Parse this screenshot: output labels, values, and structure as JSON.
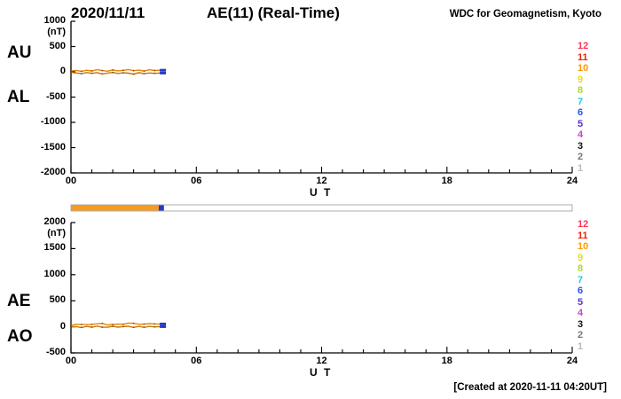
{
  "header": {
    "date": "2020/11/11",
    "title": "AE(11) (Real-Time)",
    "source": "WDC for Geomagnetism, Kyoto"
  },
  "footer": {
    "created_note": "[Created at 2020-11-11 04:20UT]"
  },
  "legend": {
    "numbers": [
      12,
      11,
      10,
      9,
      8,
      7,
      6,
      5,
      4,
      3,
      2,
      1
    ],
    "colors": [
      "#ff3355",
      "#ee2200",
      "#ff9900",
      "#eedd00",
      "#aad633",
      "#22ccee",
      "#2255ee",
      "#5533cc",
      "#cc44cc",
      "#111111",
      "#777777",
      "#bbbbbb"
    ]
  },
  "availability_bar": {
    "range": [
      0,
      24
    ],
    "filled_from": 0,
    "filled_to": 4.2,
    "fill_color": "#f59b22",
    "tip_from": 4.2,
    "tip_to": 4.45,
    "tip_color": "#2838c8",
    "track_color": "#ffffff",
    "border_color": "#999999"
  },
  "chart_data": [
    {
      "type": "line",
      "panel": "top",
      "left_labels": [
        "AU",
        "AL"
      ],
      "ylabel": "(nT)",
      "ylim": [
        -2000,
        1000
      ],
      "yticks": [
        1000,
        500,
        0,
        -500,
        -1000,
        -1500,
        -2000
      ],
      "xlabel": "U T",
      "xlim": [
        0,
        24
      ],
      "xticks": [
        0,
        6,
        12,
        18,
        24
      ],
      "xtick_labels": [
        "00",
        "06",
        "12",
        "18",
        "24"
      ],
      "grid": false,
      "end_marker_color": "#2838c8",
      "x": [
        0,
        0.25,
        0.5,
        0.75,
        1,
        1.25,
        1.5,
        1.75,
        2,
        2.25,
        2.5,
        2.75,
        3,
        3.25,
        3.5,
        3.75,
        4,
        4.25
      ],
      "series": [
        {
          "name": "AU",
          "color": "#e8820a",
          "values": [
            15,
            28,
            10,
            32,
            18,
            42,
            25,
            12,
            36,
            20,
            30,
            46,
            22,
            34,
            16,
            40,
            26,
            31
          ]
        },
        {
          "name": "AL",
          "color": "#c77400",
          "values": [
            -10,
            -22,
            -36,
            -14,
            -30,
            -16,
            -42,
            -24,
            -12,
            -32,
            -20,
            -26,
            -46,
            -16,
            -36,
            -22,
            -30,
            -24
          ]
        }
      ]
    },
    {
      "type": "line",
      "panel": "bottom",
      "left_labels": [
        "AE",
        "AO"
      ],
      "ylabel": "(nT)",
      "ylim": [
        -500,
        2000
      ],
      "yticks": [
        2000,
        1500,
        1000,
        500,
        0,
        -500
      ],
      "xlabel": "U T",
      "xlim": [
        0,
        24
      ],
      "xticks": [
        0,
        6,
        12,
        18,
        24
      ],
      "xtick_labels": [
        "00",
        "06",
        "12",
        "18",
        "24"
      ],
      "grid": false,
      "end_marker_color": "#2838c8",
      "x": [
        0,
        0.25,
        0.5,
        0.75,
        1,
        1.25,
        1.5,
        1.75,
        2,
        2.25,
        2.5,
        2.75,
        3,
        3.25,
        3.5,
        3.75,
        4,
        4.25
      ],
      "series": [
        {
          "name": "AE",
          "color": "#e8820a",
          "values": [
            25,
            50,
            46,
            46,
            48,
            58,
            67,
            36,
            48,
            52,
            50,
            72,
            68,
            50,
            52,
            62,
            56,
            55
          ]
        },
        {
          "name": "AO",
          "color": "#c77400",
          "values": [
            3,
            3,
            -13,
            9,
            -6,
            13,
            -9,
            -6,
            12,
            -6,
            5,
            10,
            -12,
            9,
            -10,
            9,
            -2,
            4
          ]
        }
      ]
    }
  ]
}
